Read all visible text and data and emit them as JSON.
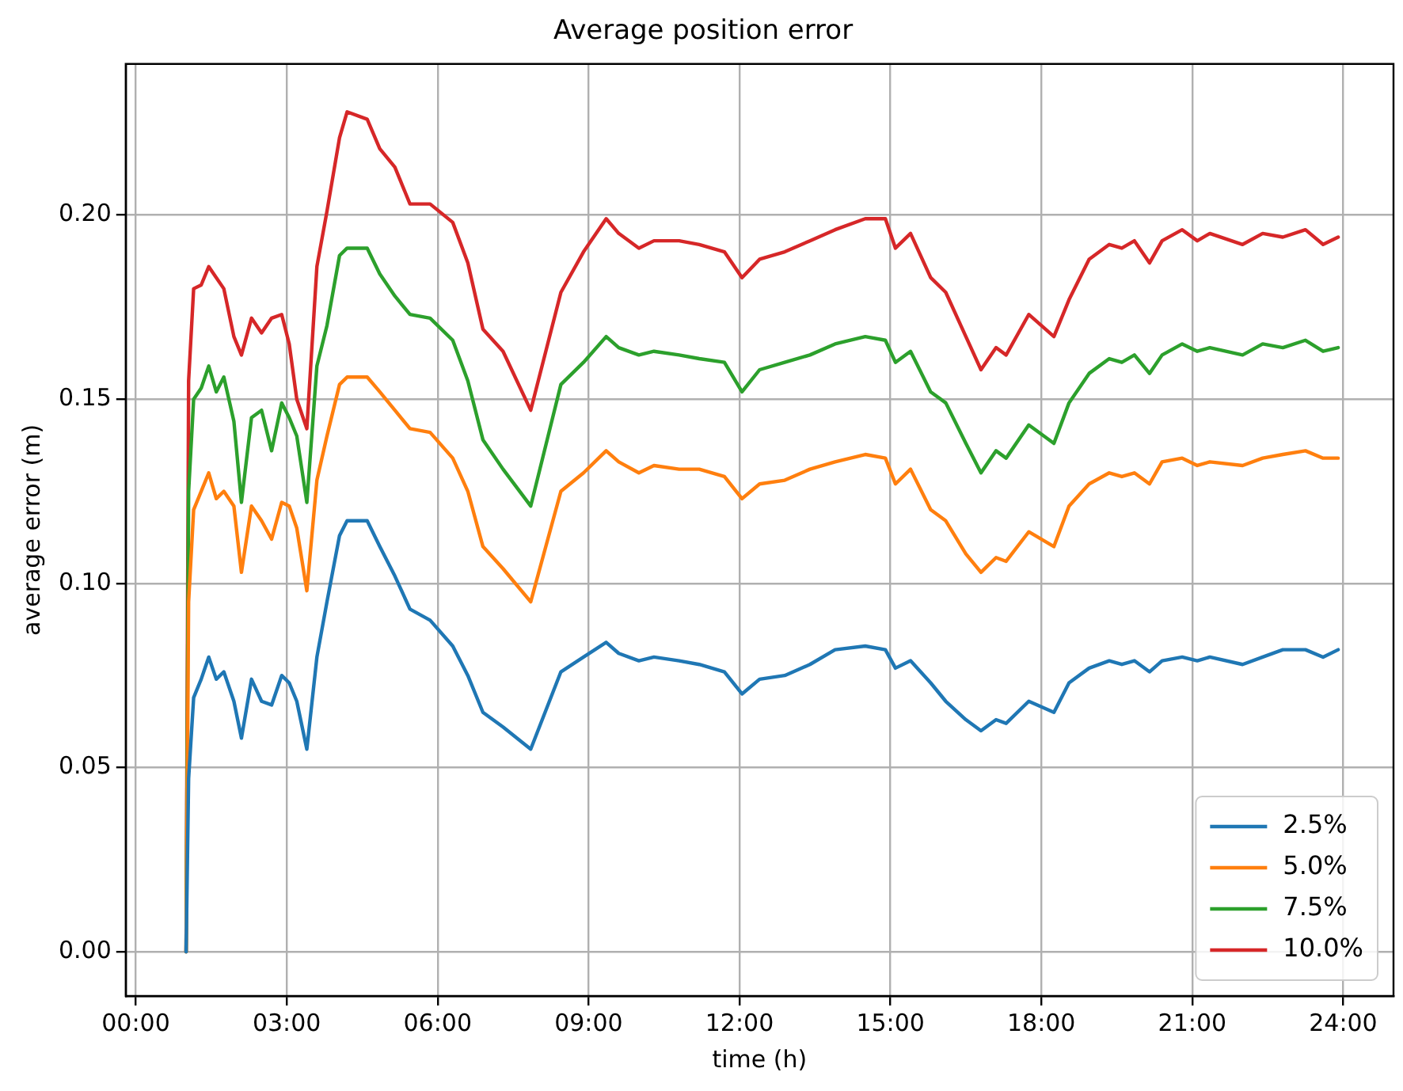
{
  "chart_data": {
    "type": "line",
    "title": "Average position error",
    "xlabel": "time (h)",
    "ylabel": "average error (m)",
    "x": [
      1.0,
      1.05,
      1.15,
      1.3,
      1.45,
      1.6,
      1.75,
      1.95,
      2.1,
      2.3,
      2.5,
      2.7,
      2.9,
      3.05,
      3.2,
      3.4,
      3.6,
      3.8,
      4.05,
      4.2,
      4.6,
      4.85,
      5.15,
      5.45,
      5.85,
      6.3,
      6.6,
      6.9,
      7.3,
      7.85,
      8.45,
      8.9,
      9.35,
      9.6,
      10.0,
      10.3,
      10.8,
      11.2,
      11.7,
      12.05,
      12.4,
      12.9,
      13.4,
      13.9,
      14.5,
      14.9,
      15.1,
      15.4,
      15.8,
      16.1,
      16.5,
      16.8,
      17.1,
      17.3,
      17.75,
      18.25,
      18.55,
      18.95,
      19.35,
      19.6,
      19.85,
      20.15,
      20.4,
      20.8,
      21.1,
      21.35,
      22.0,
      22.4,
      22.8,
      23.25,
      23.6,
      23.9
    ],
    "series": [
      {
        "name": "2.5%",
        "color": "#1f77b4",
        "values": [
          0,
          0.047,
          0.069,
          0.074,
          0.08,
          0.074,
          0.076,
          0.068,
          0.058,
          0.074,
          0.068,
          0.067,
          0.075,
          0.073,
          0.068,
          0.055,
          0.08,
          0.095,
          0.113,
          0.117,
          0.117,
          0.11,
          0.102,
          0.093,
          0.09,
          0.083,
          0.075,
          0.065,
          0.061,
          0.055,
          0.076,
          0.08,
          0.084,
          0.081,
          0.079,
          0.08,
          0.079,
          0.078,
          0.076,
          0.07,
          0.074,
          0.075,
          0.078,
          0.082,
          0.083,
          0.082,
          0.077,
          0.079,
          0.073,
          0.068,
          0.063,
          0.06,
          0.063,
          0.062,
          0.068,
          0.065,
          0.073,
          0.077,
          0.079,
          0.078,
          0.079,
          0.076,
          0.079,
          0.08,
          0.079,
          0.08,
          0.078,
          0.08,
          0.082,
          0.082,
          0.08,
          0.082
        ]
      },
      {
        "name": "5.0%",
        "color": "#ff7f0e",
        "values": [
          0,
          0.095,
          0.12,
          0.125,
          0.13,
          0.123,
          0.125,
          0.121,
          0.103,
          0.121,
          0.117,
          0.112,
          0.122,
          0.121,
          0.115,
          0.098,
          0.128,
          0.14,
          0.154,
          0.156,
          0.156,
          0.152,
          0.147,
          0.142,
          0.141,
          0.134,
          0.125,
          0.11,
          0.104,
          0.095,
          0.125,
          0.13,
          0.136,
          0.133,
          0.13,
          0.132,
          0.131,
          0.131,
          0.129,
          0.123,
          0.127,
          0.128,
          0.131,
          0.133,
          0.135,
          0.134,
          0.127,
          0.131,
          0.12,
          0.117,
          0.108,
          0.103,
          0.107,
          0.106,
          0.114,
          0.11,
          0.121,
          0.127,
          0.13,
          0.129,
          0.13,
          0.127,
          0.133,
          0.134,
          0.132,
          0.133,
          0.132,
          0.134,
          0.135,
          0.136,
          0.134,
          0.134
        ]
      },
      {
        "name": "7.5%",
        "color": "#2ca02c",
        "values": [
          0,
          0.125,
          0.15,
          0.153,
          0.159,
          0.152,
          0.156,
          0.144,
          0.122,
          0.145,
          0.147,
          0.136,
          0.149,
          0.145,
          0.14,
          0.122,
          0.159,
          0.17,
          0.189,
          0.191,
          0.191,
          0.184,
          0.178,
          0.173,
          0.172,
          0.166,
          0.155,
          0.139,
          0.131,
          0.121,
          0.154,
          0.16,
          0.167,
          0.164,
          0.162,
          0.163,
          0.162,
          0.161,
          0.16,
          0.152,
          0.158,
          0.16,
          0.162,
          0.165,
          0.167,
          0.166,
          0.16,
          0.163,
          0.152,
          0.149,
          0.138,
          0.13,
          0.136,
          0.134,
          0.143,
          0.138,
          0.149,
          0.157,
          0.161,
          0.16,
          0.162,
          0.157,
          0.162,
          0.165,
          0.163,
          0.164,
          0.162,
          0.165,
          0.164,
          0.166,
          0.163,
          0.164
        ]
      },
      {
        "name": "10.0%",
        "color": "#d62728",
        "values": [
          0,
          0.155,
          0.18,
          0.181,
          0.186,
          0.183,
          0.18,
          0.167,
          0.162,
          0.172,
          0.168,
          0.172,
          0.173,
          0.165,
          0.15,
          0.142,
          0.186,
          0.201,
          0.221,
          0.228,
          0.226,
          0.218,
          0.213,
          0.203,
          0.203,
          0.198,
          0.187,
          0.169,
          0.163,
          0.147,
          0.179,
          0.19,
          0.199,
          0.195,
          0.191,
          0.193,
          0.193,
          0.192,
          0.19,
          0.183,
          0.188,
          0.19,
          0.193,
          0.196,
          0.199,
          0.199,
          0.191,
          0.195,
          0.183,
          0.179,
          0.167,
          0.158,
          0.164,
          0.162,
          0.173,
          0.167,
          0.177,
          0.188,
          0.192,
          0.191,
          0.193,
          0.187,
          0.193,
          0.196,
          0.193,
          0.195,
          0.192,
          0.195,
          0.194,
          0.196,
          0.192,
          0.194
        ]
      }
    ],
    "xlim": [
      -0.2,
      25
    ],
    "xticks": [
      {
        "value": 0,
        "label": "00:00"
      },
      {
        "value": 3,
        "label": "03:00"
      },
      {
        "value": 6,
        "label": "06:00"
      },
      {
        "value": 9,
        "label": "09:00"
      },
      {
        "value": 12,
        "label": "12:00"
      },
      {
        "value": 15,
        "label": "15:00"
      },
      {
        "value": 18,
        "label": "18:00"
      },
      {
        "value": 21,
        "label": "21:00"
      },
      {
        "value": 24,
        "label": "24:00"
      }
    ],
    "ylim": [
      -0.012,
      0.241
    ],
    "yticks": [
      {
        "value": 0,
        "label": "0.00"
      },
      {
        "value": 0.05,
        "label": "0.05"
      },
      {
        "value": 0.1,
        "label": "0.10"
      },
      {
        "value": 0.15,
        "label": "0.15"
      },
      {
        "value": 0.2,
        "label": "0.20"
      }
    ],
    "grid": true,
    "legend": "bottom right",
    "line_style": "solid",
    "marker": "none"
  }
}
